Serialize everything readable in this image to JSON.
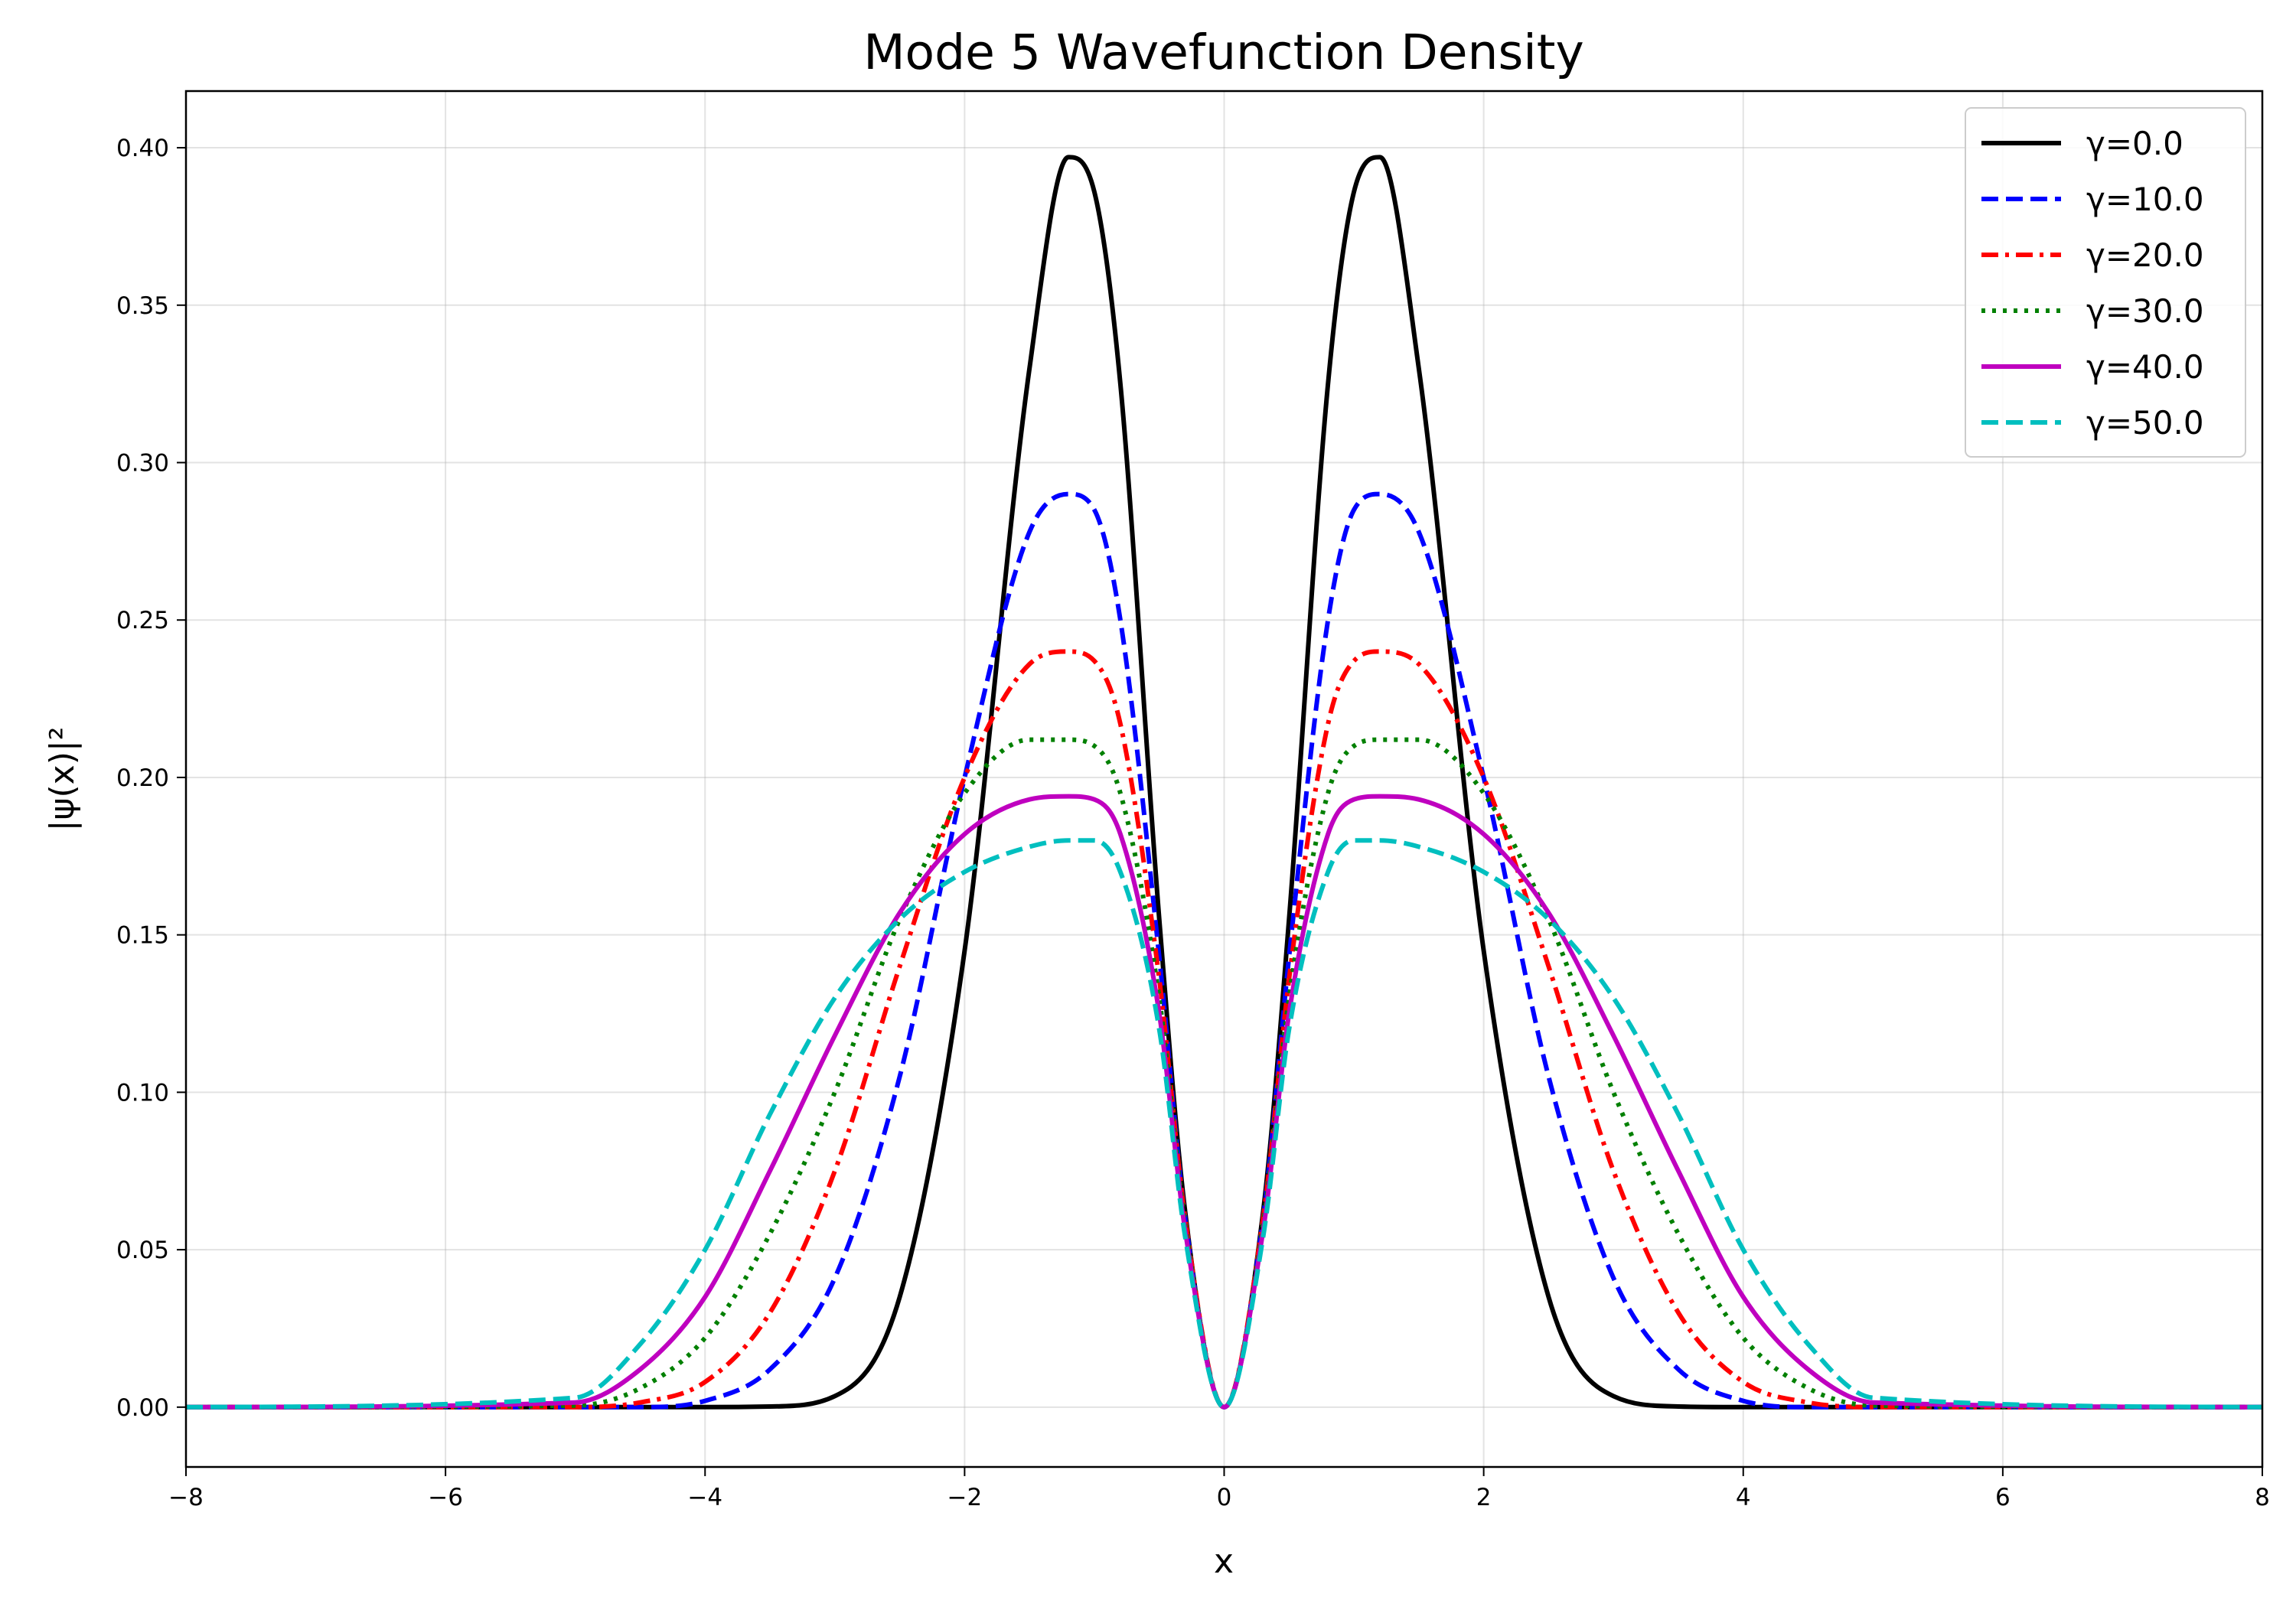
{
  "chart_data": {
    "type": "line",
    "title": "Mode 5 Wavefunction Density",
    "xlabel": "x",
    "ylabel": "|ψ(x)|²",
    "xlim": [
      -8,
      8
    ],
    "ylim": [
      -0.019,
      0.418
    ],
    "xticks": [
      -8,
      -6,
      -4,
      -2,
      0,
      2,
      4,
      6,
      8
    ],
    "xtick_labels": [
      "−8",
      "−6",
      "−4",
      "−2",
      "0",
      "2",
      "4",
      "6",
      "8"
    ],
    "yticks": [
      0.0,
      0.05,
      0.1,
      0.15,
      0.2,
      0.25,
      0.3,
      0.35,
      0.4
    ],
    "ytick_labels": [
      "0.00",
      "0.05",
      "0.10",
      "0.15",
      "0.20",
      "0.25",
      "0.30",
      "0.35",
      "0.40"
    ],
    "grid": true,
    "legend_position": "top-right",
    "x": [
      -8,
      -5,
      -4.5,
      -4,
      -3.5,
      -3,
      -2.5,
      -2,
      -1.5,
      -1.2,
      -1,
      -0.8,
      -0.5,
      -0.3,
      0,
      0.3,
      0.5,
      0.8,
      1,
      1.2,
      1.5,
      2,
      2.5,
      3,
      3.5,
      4,
      4.5,
      5,
      8
    ],
    "series": [
      {
        "name": "γ=0.0",
        "color": "#000000",
        "dash": "solid",
        "values": [
          0,
          0,
          0,
          0,
          0.0002,
          0.0035,
          0.035,
          0.145,
          0.33,
          0.397,
          0.386,
          0.325,
          0.155,
          0.062,
          0,
          0.062,
          0.155,
          0.325,
          0.386,
          0.397,
          0.33,
          0.145,
          0.035,
          0.0035,
          0.0002,
          0,
          0,
          0,
          0
        ]
      },
      {
        "name": "γ=10.0",
        "color": "#0000ff",
        "dash": "dashed",
        "values": [
          0,
          0,
          0,
          0.002,
          0.012,
          0.041,
          0.105,
          0.2,
          0.278,
          0.29,
          0.285,
          0.25,
          0.143,
          0.06,
          0,
          0.06,
          0.143,
          0.25,
          0.285,
          0.29,
          0.278,
          0.2,
          0.105,
          0.041,
          0.012,
          0.002,
          0,
          0,
          0
        ]
      },
      {
        "name": "γ=20.0",
        "color": "#ff0000",
        "dash": "dashdot",
        "values": [
          0,
          0,
          0.0015,
          0.008,
          0.03,
          0.075,
          0.14,
          0.2,
          0.236,
          0.24,
          0.237,
          0.217,
          0.136,
          0.06,
          0,
          0.06,
          0.136,
          0.217,
          0.237,
          0.24,
          0.236,
          0.2,
          0.14,
          0.075,
          0.03,
          0.008,
          0.0015,
          0,
          0
        ]
      },
      {
        "name": "γ=30.0",
        "color": "#008000",
        "dash": "dotted",
        "values": [
          0,
          0.0005,
          0.006,
          0.022,
          0.055,
          0.1,
          0.155,
          0.195,
          0.212,
          0.212,
          0.21,
          0.195,
          0.13,
          0.058,
          0,
          0.058,
          0.13,
          0.195,
          0.21,
          0.212,
          0.212,
          0.195,
          0.155,
          0.1,
          0.055,
          0.022,
          0.006,
          0.0005,
          0
        ]
      },
      {
        "name": "γ=40.0",
        "color": "#bf00bf",
        "dash": "solid",
        "values": [
          0,
          0.0015,
          0.012,
          0.035,
          0.075,
          0.118,
          0.157,
          0.182,
          0.193,
          0.194,
          0.193,
          0.182,
          0.125,
          0.056,
          0,
          0.056,
          0.125,
          0.182,
          0.193,
          0.194,
          0.193,
          0.182,
          0.157,
          0.118,
          0.075,
          0.035,
          0.012,
          0.0015,
          0
        ]
      },
      {
        "name": "γ=50.0",
        "color": "#00bfbf",
        "dash": "dashed",
        "values": [
          0,
          0.003,
          0.02,
          0.05,
          0.093,
          0.13,
          0.155,
          0.17,
          0.178,
          0.18,
          0.18,
          0.17,
          0.12,
          0.054,
          0,
          0.054,
          0.12,
          0.17,
          0.18,
          0.18,
          0.178,
          0.17,
          0.155,
          0.13,
          0.093,
          0.05,
          0.02,
          0.003,
          0
        ]
      }
    ]
  }
}
